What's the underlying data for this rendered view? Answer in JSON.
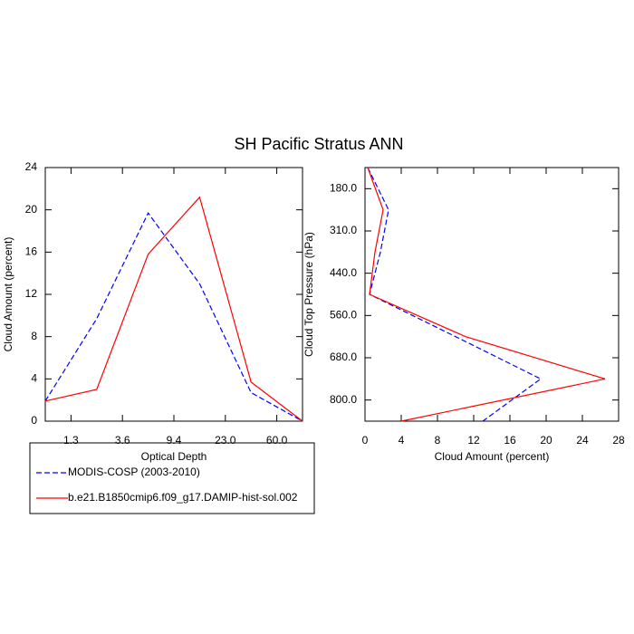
{
  "title": "SH Pacific Stratus ANN",
  "chart_data": [
    {
      "type": "line",
      "orientation": "vertical",
      "xlabel": "Optical Depth",
      "ylabel": "Cloud Amount (percent)",
      "x": [
        0,
        1,
        2,
        3,
        4,
        5
      ],
      "xlim": [
        0,
        5
      ],
      "xticks": [
        {
          "value": 0.5,
          "label": "1.3"
        },
        {
          "value": 1.5,
          "label": "3.6"
        },
        {
          "value": 2.5,
          "label": "9.4"
        },
        {
          "value": 3.5,
          "label": "23.0"
        },
        {
          "value": 4.5,
          "label": "60.0"
        }
      ],
      "ylim": [
        0,
        24
      ],
      "yticks": [
        0,
        4,
        8,
        12,
        16,
        20,
        24
      ],
      "series": [
        {
          "name": "MODIS-COSP (2003-2010)",
          "color": "#0000ff",
          "dashed": true,
          "values": [
            1.9,
            9.7,
            19.7,
            13.0,
            2.7,
            0
          ]
        },
        {
          "name": "b.e21.B1850cmip6.f09_g17.DAMIP-hist-sol.002",
          "color": "#ff0000",
          "dashed": false,
          "values": [
            1.9,
            3.0,
            15.8,
            21.2,
            3.7,
            0
          ]
        }
      ]
    },
    {
      "type": "line",
      "orientation": "horizontal",
      "xlabel": "Cloud Amount (percent)",
      "ylabel": "Cloud Top Pressure (hPa)",
      "y": [
        0,
        1,
        2,
        3,
        4,
        5,
        6
      ],
      "ylim": [
        0,
        6
      ],
      "y_inverted": true,
      "yticks": [
        {
          "value": 0.5,
          "label": "180.0"
        },
        {
          "value": 1.5,
          "label": "310.0"
        },
        {
          "value": 2.5,
          "label": "440.0"
        },
        {
          "value": 3.5,
          "label": "560.0"
        },
        {
          "value": 4.5,
          "label": "680.0"
        },
        {
          "value": 5.5,
          "label": "800.0"
        }
      ],
      "xlim": [
        0,
        28
      ],
      "xticks": [
        0,
        4,
        8,
        12,
        16,
        20,
        24,
        28
      ],
      "series": [
        {
          "color": "#0000ff",
          "dashed": true,
          "values": [
            0.3,
            2.6,
            1.7,
            0.5,
            10.0,
            19.4,
            13.0
          ]
        },
        {
          "color": "#ff0000",
          "dashed": false,
          "values": [
            0.3,
            2.0,
            1.1,
            0.5,
            11.1,
            26.5,
            4.0
          ]
        }
      ]
    }
  ]
}
